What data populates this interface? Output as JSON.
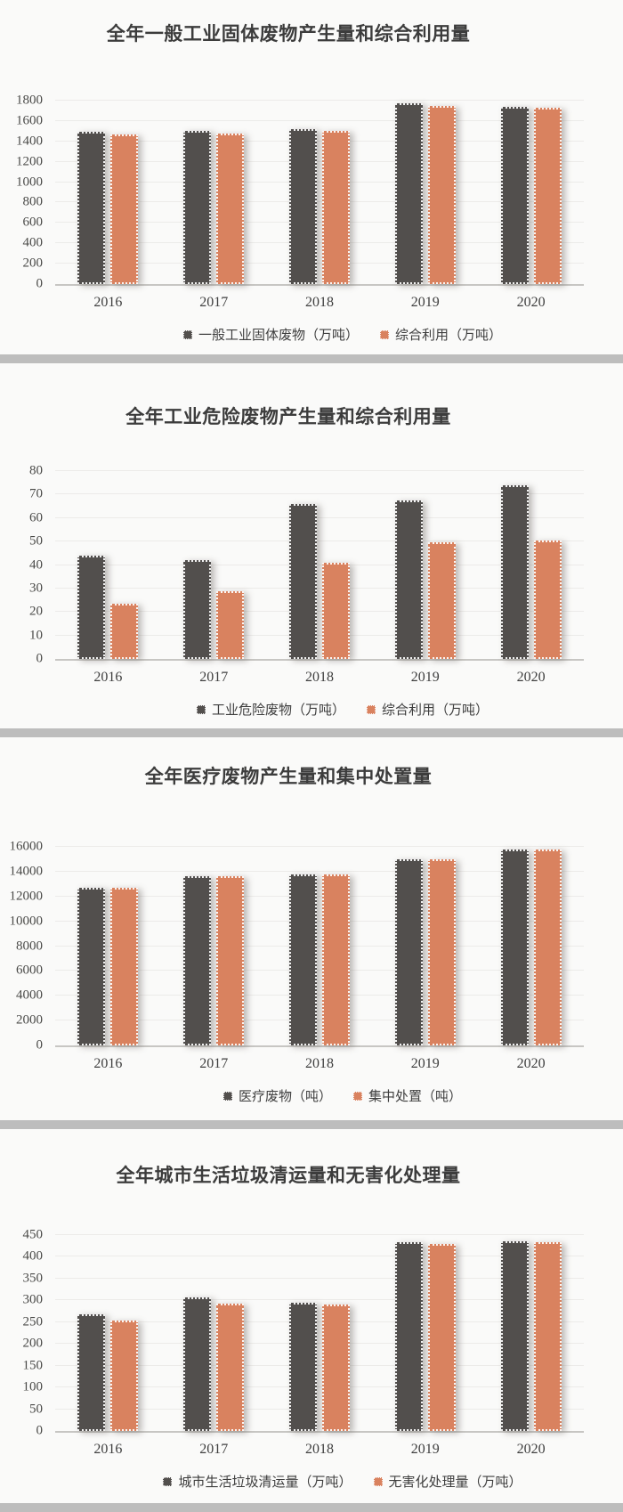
{
  "page": {
    "background": "#fafaf9",
    "divider_color": "#bdbdbd"
  },
  "colors": {
    "series1": "#524f4d",
    "series2": "#d9825f",
    "gridline": "#ecebe9",
    "axis_line": "#c7c6c3",
    "title_text": "#3c3c3c",
    "tick_text": "#4a4a48",
    "legend_text": "#3e3e3e"
  },
  "chart_data": [
    {
      "type": "bar",
      "title": "全年一般工业固体废物产生量和综合利用量",
      "categories": [
        "2016",
        "2017",
        "2018",
        "2019",
        "2020"
      ],
      "series": [
        {
          "name": "一般工业固体废物（万吨）",
          "values": [
            1490,
            1500,
            1520,
            1775,
            1735
          ]
        },
        {
          "name": "综合利用（万吨）",
          "values": [
            1470,
            1475,
            1505,
            1750,
            1730
          ]
        }
      ],
      "xlabel": "",
      "ylabel": "",
      "ylim": [
        0,
        1800
      ],
      "ytick_step": 200,
      "grid": true,
      "legend_position": "bottom"
    },
    {
      "type": "bar",
      "title": "全年工业危险废物产生量和综合利用量",
      "categories": [
        "2016",
        "2017",
        "2018",
        "2019",
        "2020"
      ],
      "series": [
        {
          "name": "工业危险废物（万吨）",
          "values": [
            44,
            42,
            66,
            67.5,
            74
          ]
        },
        {
          "name": "综合利用（万吨）",
          "values": [
            23.5,
            29,
            41,
            49.5,
            50.3
          ]
        }
      ],
      "xlabel": "",
      "ylabel": "",
      "ylim": [
        0,
        80
      ],
      "ytick_step": 10,
      "grid": true,
      "legend_position": "bottom"
    },
    {
      "type": "bar",
      "title": "全年医疗废物产生量和集中处置量",
      "categories": [
        "2016",
        "2017",
        "2018",
        "2019",
        "2020"
      ],
      "series": [
        {
          "name": "医疗废物（吨）",
          "values": [
            12700,
            13600,
            13800,
            15000,
            15800
          ]
        },
        {
          "name": "集中处置（吨）",
          "values": [
            12700,
            13600,
            13800,
            15000,
            15800
          ]
        }
      ],
      "xlabel": "",
      "ylabel": "",
      "ylim": [
        0,
        16000
      ],
      "ytick_step": 2000,
      "grid": true,
      "legend_position": "bottom"
    },
    {
      "type": "bar",
      "title": "全年城市生活垃圾清运量和无害化处理量",
      "categories": [
        "2016",
        "2017",
        "2018",
        "2019",
        "2020"
      ],
      "series": [
        {
          "name": "城市生活垃圾清运量（万吨）",
          "values": [
            268,
            306,
            295,
            433,
            435
          ]
        },
        {
          "name": "无害化处理量（万吨）",
          "values": [
            253,
            293,
            290,
            430,
            434
          ]
        }
      ],
      "xlabel": "",
      "ylabel": "",
      "ylim": [
        0,
        450
      ],
      "ytick_step": 50,
      "grid": true,
      "legend_position": "bottom"
    }
  ]
}
